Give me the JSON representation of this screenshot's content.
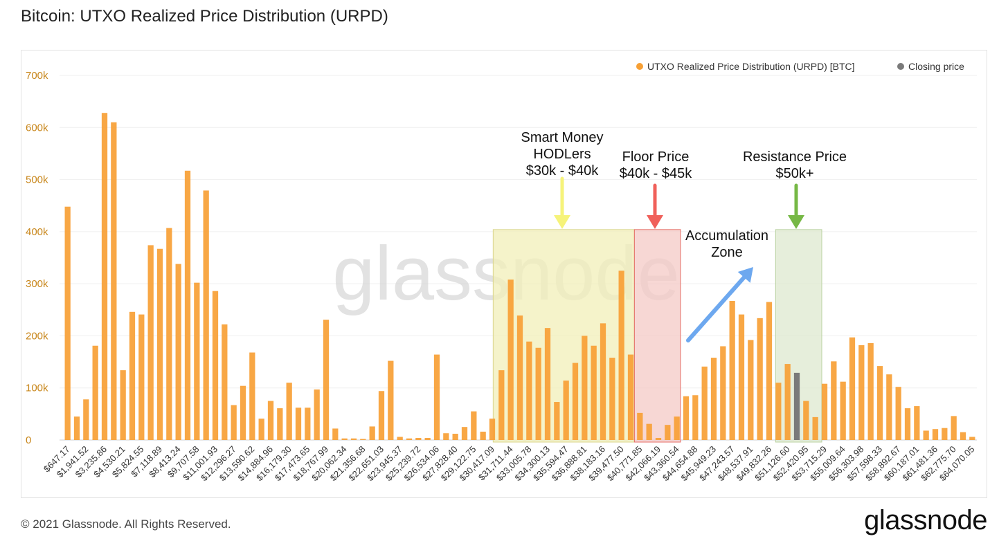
{
  "page": {
    "title": "Bitcoin: UTXO Realized Price Distribution (URPD)",
    "copyright": "© 2021 Glassnode. All Rights Reserved.",
    "logo": "glassnode"
  },
  "colors": {
    "bar": "#f7a035",
    "closing": "#7a7a7a",
    "smart_money_zone": "#f2efb8",
    "floor_zone": "#f4c9c6",
    "resistance_zone": "#dde8cf",
    "arrow_yellow": "#f6f37a",
    "arrow_red": "#f0605a",
    "arrow_green": "#76b845",
    "arrow_blue": "#6da8ef"
  },
  "chart_data": {
    "type": "bar",
    "watermark": "glassnode",
    "ylim": [
      0,
      700000
    ],
    "yticks": [
      {
        "value": 0,
        "label": "0"
      },
      {
        "value": 100000,
        "label": "100k"
      },
      {
        "value": 200000,
        "label": "200k"
      },
      {
        "value": 300000,
        "label": "300k"
      },
      {
        "value": 400000,
        "label": "400k"
      },
      {
        "value": 500000,
        "label": "500k"
      },
      {
        "value": 600000,
        "label": "600k"
      },
      {
        "value": 700000,
        "label": "700k"
      }
    ],
    "xtick_labels": [
      "$647.17",
      "$1,941.52",
      "$3,235.86",
      "$4,530.21",
      "$5,824.55",
      "$7,118.89",
      "$8,413.24",
      "$9,707.58",
      "$11,001.93",
      "$12,296.27",
      "$13,590.62",
      "$14,884.96",
      "$16,179.30",
      "$17,473.65",
      "$18,767.99",
      "$20,062.34",
      "$21,356.68",
      "$22,651.03",
      "$23,945.37",
      "$25,239.72",
      "$26,534.06",
      "$27,828.40",
      "$29,122.75",
      "$30,417.09",
      "$31,711.44",
      "$33,005.78",
      "$34,300.13",
      "$35,594.47",
      "$36,888.81",
      "$38,183.16",
      "$39,477.50",
      "$40,771.85",
      "$42,066.19",
      "$43,360.54",
      "$44,654.88",
      "$45,949.23",
      "$47,243.57",
      "$48,537.91",
      "$49,832.26",
      "$51,126.60",
      "$52,420.95",
      "$53,715.29",
      "$55,009.64",
      "$56,303.98",
      "$57,598.33",
      "$58,892.67",
      "$60,187.01",
      "$61,481.36",
      "$62,775.70",
      "$64,070.05"
    ],
    "series": [
      {
        "name": "UTXO Realized Price Distribution (URPD) [BTC]",
        "values": [
          448000,
          45000,
          78000,
          181000,
          628000,
          610000,
          134000,
          246000,
          241000,
          374000,
          367000,
          407000,
          338000,
          517000,
          302000,
          479000,
          286000,
          222000,
          67000,
          104000,
          168000,
          41000,
          75000,
          61000,
          110000,
          62000,
          62000,
          97000,
          231000,
          22000,
          3000,
          3000,
          2000,
          26000,
          94000,
          152000,
          6000,
          3000,
          4000,
          4000,
          164000,
          13000,
          12000,
          25000,
          55000,
          16000,
          41000,
          134000,
          308000,
          239000,
          189000,
          177000,
          215000,
          73000,
          114000,
          148000,
          200000,
          181000,
          224000,
          158000,
          325000,
          164000,
          52000,
          31000,
          4000,
          29000,
          45000,
          84000,
          86000,
          141000,
          158000,
          180000,
          267000,
          241000,
          192000,
          234000,
          265000,
          110000,
          146000,
          0,
          75000,
          44000,
          108000,
          151000,
          112000,
          197000,
          182000,
          186000,
          142000,
          126000,
          102000,
          61000,
          65000,
          18000,
          21000,
          23000,
          46000,
          15000,
          6000
        ]
      },
      {
        "name": "Closing price",
        "bar_index": 79,
        "value": 129000
      }
    ],
    "legend_placement": "top-right",
    "annotations": [
      {
        "id": "smart-money",
        "lines": [
          "Smart Money",
          "HODLers",
          "$30k - $40k"
        ]
      },
      {
        "id": "floor",
        "lines": [
          "Floor Price",
          "$40k - $45k"
        ]
      },
      {
        "id": "resistance",
        "lines": [
          "Resistance Price",
          "$50k+"
        ]
      },
      {
        "id": "accumulation",
        "lines": [
          "Accumulation",
          "Zone"
        ]
      }
    ],
    "grid": true
  }
}
